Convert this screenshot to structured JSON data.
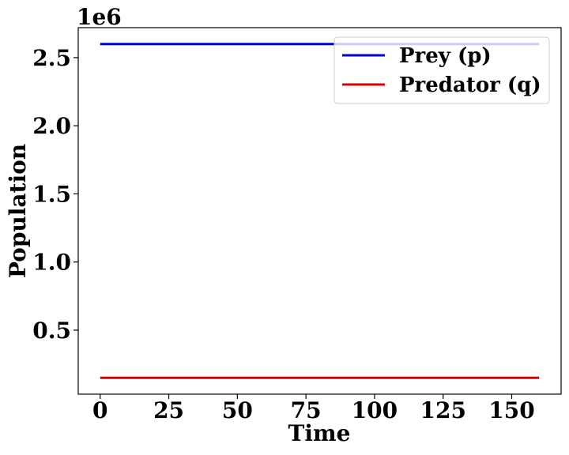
{
  "chart_data": {
    "type": "line",
    "title": "",
    "xlabel": "Time",
    "ylabel": "Population",
    "y_offset_label": "1e6",
    "xlim": [
      -8,
      168
    ],
    "ylim": [
      0.03,
      2.72
    ],
    "x_ticks": [
      0,
      25,
      50,
      75,
      100,
      125,
      150
    ],
    "x_tick_labels": [
      "0",
      "25",
      "50",
      "75",
      "100",
      "125",
      "150"
    ],
    "y_ticks": [
      0.5,
      1.0,
      1.5,
      2.0,
      2.5
    ],
    "y_tick_labels": [
      "0.5",
      "1.0",
      "1.5",
      "2.0",
      "2.5"
    ],
    "grid": false,
    "legend_position": "top-right",
    "series": [
      {
        "name": "Prey (p)",
        "color": "#0000cc",
        "x": [
          0,
          160
        ],
        "y": [
          2.6,
          2.6
        ]
      },
      {
        "name": "Predator (q)",
        "color": "#dd0000",
        "x": [
          0,
          160
        ],
        "y": [
          0.15,
          0.15
        ]
      }
    ]
  }
}
